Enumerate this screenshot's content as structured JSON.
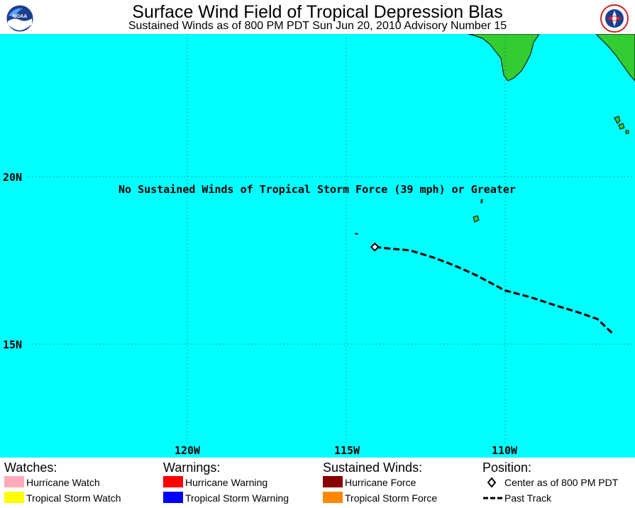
{
  "header": {
    "title": "Surface Wind Field of Tropical Depression Blas",
    "subtitle": "Sustained Winds as of 800 PM PDT Sun Jun 20, 2010   Advisory Number 15"
  },
  "logos": {
    "left": "noaa-logo",
    "right": "national-weather-service-logo"
  },
  "map": {
    "ocean_color": "#00ffff",
    "land_color": "#33cc33",
    "message": "No Sustained Winds of Tropical Storm Force (39 mph) or Greater",
    "lat_labels": [
      "20N",
      "15N"
    ],
    "lon_labels": [
      "120W",
      "115W",
      "110W"
    ],
    "storm_center": {
      "lat": 17.9,
      "lon": 114.1
    },
    "past_track": [
      {
        "lat": 17.9,
        "lon": 114.1
      },
      {
        "lat": 17.85,
        "lon": 113.6
      },
      {
        "lat": 17.8,
        "lon": 113.0
      },
      {
        "lat": 17.6,
        "lon": 112.3
      },
      {
        "lat": 17.35,
        "lon": 111.6
      },
      {
        "lat": 17.05,
        "lon": 110.9
      },
      {
        "lat": 16.6,
        "lon": 110.0
      },
      {
        "lat": 16.4,
        "lon": 109.2
      },
      {
        "lat": 16.15,
        "lon": 108.4
      },
      {
        "lat": 15.95,
        "lon": 107.7
      },
      {
        "lat": 15.75,
        "lon": 107.1
      },
      {
        "lat": 15.3,
        "lon": 106.6
      }
    ]
  },
  "legend": {
    "watches": {
      "heading": "Watches:",
      "items": [
        {
          "label": "Hurricane Watch",
          "color": "#ffaabb"
        },
        {
          "label": "Tropical Storm Watch",
          "color": "#ffff00"
        }
      ]
    },
    "warnings": {
      "heading": "Warnings:",
      "items": [
        {
          "label": "Hurricane Warning",
          "color": "#ff0000"
        },
        {
          "label": "Tropical Storm Warning",
          "color": "#0000ff"
        }
      ]
    },
    "sustained_winds": {
      "heading": "Sustained Winds:",
      "items": [
        {
          "label": "Hurricane Force",
          "color": "#880000"
        },
        {
          "label": "Tropical Storm Force",
          "color": "#ff8800"
        }
      ]
    },
    "position": {
      "heading": "Position:",
      "items": [
        {
          "label": "Center as of 800 PM PDT",
          "icon": "diamond-icon"
        },
        {
          "label": "Past Track",
          "icon": "dashed-line-icon"
        }
      ]
    }
  }
}
